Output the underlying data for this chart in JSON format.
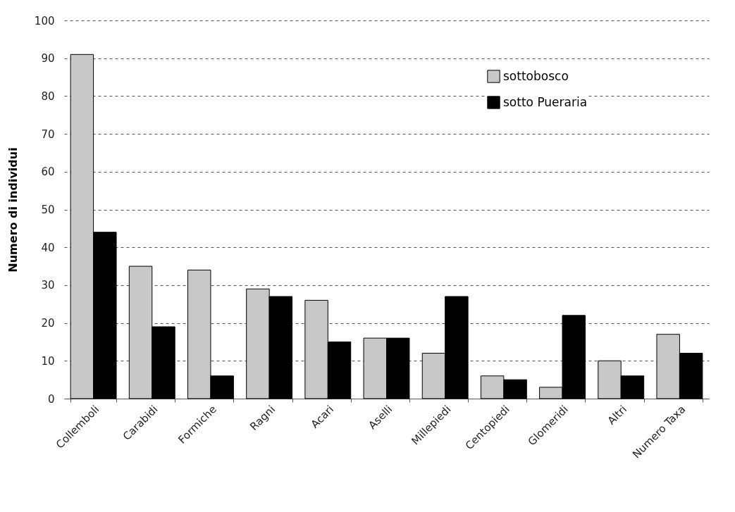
{
  "chart_data": {
    "type": "bar",
    "ylabel": "Numero di individui",
    "categories": [
      "Collemboli",
      "Carabidi",
      "Formiche",
      "Ragni",
      "Acari",
      "Aselli",
      "Millepiedi",
      "Centopiedi",
      "Glomeridi",
      "Altri",
      "Numero Taxa"
    ],
    "series": [
      {
        "name": "sottobosco",
        "color": "#c8c8c8",
        "values": [
          91,
          35,
          34,
          29,
          26,
          16,
          12,
          6,
          3,
          10,
          17
        ]
      },
      {
        "name": "sotto Pueraria",
        "color": "#000000",
        "values": [
          44,
          19,
          6,
          27,
          15,
          16,
          27,
          5,
          22,
          6,
          12
        ]
      }
    ],
    "ylim": [
      0,
      100
    ],
    "yticks": [
      0,
      10,
      20,
      30,
      40,
      50,
      60,
      70,
      80,
      90,
      100
    ],
    "grid": "y",
    "legend": "top right"
  }
}
